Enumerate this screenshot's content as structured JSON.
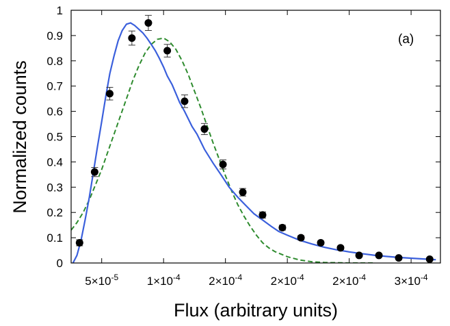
{
  "chart_data": {
    "type": "scatter",
    "title": "",
    "panel_label": "(a)",
    "xlabel": "Flux (arbitrary units)",
    "ylabel": "Normalized counts",
    "xlim": [
      2.53e-05,
      0.0003237
    ],
    "ylim": [
      0,
      1
    ],
    "x_tick_values": [
      5e-05,
      0.0001,
      0.00015,
      0.0002,
      0.00025,
      0.0003
    ],
    "x_tick_labels": [
      {
        "mantissa": "5×10",
        "exp": "-5"
      },
      {
        "mantissa": "1×10",
        "exp": "-4"
      },
      {
        "mantissa": "2×10",
        "exp": "-4"
      },
      {
        "mantissa": "2×10",
        "exp": "-4"
      },
      {
        "mantissa": "2×10",
        "exp": "-4"
      },
      {
        "mantissa": "3×10",
        "exp": "-4"
      }
    ],
    "y_ticks": [
      0,
      0.1,
      0.2,
      0.3,
      0.4,
      0.5,
      0.6,
      0.7,
      0.8,
      0.9,
      1
    ],
    "y_tick_labels": [
      "0",
      "0.1",
      "0.2",
      "0.3",
      "0.4",
      "0.5",
      "0.6",
      "0.7",
      "0.8",
      "0.9",
      "1"
    ],
    "grid": false,
    "series": [
      {
        "kind": "points_with_errorbars",
        "color": "#000000",
        "points": [
          {
            "x": 3.21e-05,
            "y": 0.08,
            "err": 0.012
          },
          {
            "x": 4.43e-05,
            "y": 0.36,
            "err": 0.018
          },
          {
            "x": 5.65e-05,
            "y": 0.67,
            "err": 0.025
          },
          {
            "x": 7.44e-05,
            "y": 0.89,
            "err": 0.028
          },
          {
            "x": 8.77e-05,
            "y": 0.95,
            "err": 0.03
          },
          {
            "x": 0.000103,
            "y": 0.84,
            "err": 0.025
          },
          {
            "x": 0.000117,
            "y": 0.64,
            "err": 0.025
          },
          {
            "x": 0.000133,
            "y": 0.53,
            "err": 0.022
          },
          {
            "x": 0.000148,
            "y": 0.39,
            "err": 0.018
          },
          {
            "x": 0.000164,
            "y": 0.28,
            "err": 0.015
          },
          {
            "x": 0.00018,
            "y": 0.19,
            "err": 0.012
          },
          {
            "x": 0.000196,
            "y": 0.14,
            "err": 0.01
          },
          {
            "x": 0.000211,
            "y": 0.1,
            "err": 0.008
          },
          {
            "x": 0.000227,
            "y": 0.08,
            "err": 0.007
          },
          {
            "x": 0.000243,
            "y": 0.06,
            "err": 0.007
          },
          {
            "x": 0.000258,
            "y": 0.03,
            "err": 0.006
          },
          {
            "x": 0.000274,
            "y": 0.03,
            "err": 0.006
          },
          {
            "x": 0.00029,
            "y": 0.02,
            "err": 0.005
          },
          {
            "x": 0.000315,
            "y": 0.015,
            "err": 0.005
          }
        ]
      },
      {
        "kind": "line",
        "style": "solid",
        "color": "#3a5fdc",
        "x": [
          2.68e-05,
          3e-05,
          3.33e-05,
          3.66e-05,
          4e-05,
          4.33e-05,
          4.66e-05,
          5e-05,
          5.33e-05,
          5.66e-05,
          6e-05,
          6.33e-05,
          6.66e-05,
          7e-05,
          7.33e-05,
          7.66e-05,
          8e-05,
          8.33e-05,
          8.66e-05,
          9e-05,
          9.33e-05,
          9.66e-05,
          0.0001,
          0.000103,
          0.000107,
          0.00011,
          0.000113,
          0.000117,
          0.00012,
          0.000123,
          0.000127,
          0.00013,
          0.000133,
          0.00014,
          0.000147,
          0.000153,
          0.00016,
          0.000167,
          0.000173,
          0.00018,
          0.000187,
          0.000193,
          0.0002,
          0.00021,
          0.00022,
          0.00023,
          0.00024,
          0.00025,
          0.00026,
          0.00027,
          0.00028,
          0.00029,
          0.0003,
          0.00031,
          0.00032
        ],
        "y": [
          0.0,
          0.03,
          0.09,
          0.17,
          0.26,
          0.36,
          0.46,
          0.56,
          0.66,
          0.75,
          0.82,
          0.88,
          0.92,
          0.945,
          0.95,
          0.94,
          0.925,
          0.91,
          0.89,
          0.865,
          0.84,
          0.81,
          0.775,
          0.74,
          0.705,
          0.67,
          0.635,
          0.6,
          0.57,
          0.54,
          0.51,
          0.48,
          0.45,
          0.395,
          0.345,
          0.3,
          0.26,
          0.225,
          0.195,
          0.17,
          0.145,
          0.125,
          0.11,
          0.09,
          0.075,
          0.062,
          0.052,
          0.044,
          0.037,
          0.031,
          0.026,
          0.022,
          0.019,
          0.016,
          0.013
        ]
      },
      {
        "kind": "line",
        "style": "dashed",
        "color": "#2e8b2e",
        "x": [
          2.53e-05,
          3e-05,
          3.5e-05,
          4e-05,
          4.5e-05,
          5e-05,
          5.5e-05,
          6e-05,
          6.5e-05,
          7e-05,
          7.5e-05,
          8e-05,
          8.5e-05,
          9e-05,
          9.5e-05,
          0.0001,
          0.000105,
          0.00011,
          0.000115,
          0.00012,
          0.000125,
          0.00013,
          0.000135,
          0.00014,
          0.000145,
          0.00015,
          0.000155,
          0.00016,
          0.000165,
          0.00017,
          0.000175,
          0.00018,
          0.000185,
          0.00019,
          0.0002,
          0.00021,
          0.00022,
          0.00023,
          0.00024,
          0.00025,
          0.00026,
          0.00027
        ],
        "y": [
          0.13,
          0.16,
          0.2,
          0.25,
          0.31,
          0.37,
          0.44,
          0.51,
          0.58,
          0.65,
          0.72,
          0.78,
          0.83,
          0.865,
          0.885,
          0.89,
          0.875,
          0.845,
          0.8,
          0.745,
          0.68,
          0.615,
          0.545,
          0.475,
          0.41,
          0.345,
          0.285,
          0.23,
          0.185,
          0.145,
          0.11,
          0.08,
          0.06,
          0.045,
          0.025,
          0.012,
          0.005,
          0.002,
          0.001,
          0.0,
          0.0,
          0.0
        ]
      }
    ]
  }
}
